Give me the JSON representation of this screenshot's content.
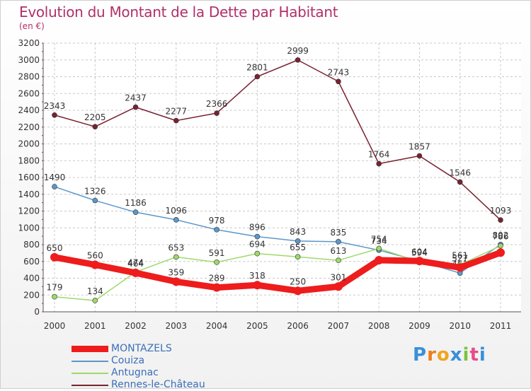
{
  "chart_data": {
    "type": "line",
    "title": "Evolution du Montant de la Dette par Habitant",
    "subtitle": "(en €)",
    "xlabel": "",
    "ylabel": "",
    "ylim": [
      0,
      3200
    ],
    "yticks": [
      "0",
      "200",
      "400",
      "600",
      "800",
      "1000",
      "1200",
      "1400",
      "1600",
      "1800",
      "2000",
      "2200",
      "2400",
      "2600",
      "2800",
      "3000",
      "3200"
    ],
    "categories": [
      "2000",
      "2001",
      "2002",
      "2003",
      "2004",
      "2005",
      "2006",
      "2007",
      "2008",
      "2009",
      "2010",
      "2011"
    ],
    "grid": true,
    "legend_position": "bottom-left",
    "series": [
      {
        "name": "Rennes-le-Château",
        "color": "#7a2230",
        "values": [
          2343,
          2205,
          2437,
          2277,
          2366,
          2801,
          2999,
          2743,
          1764,
          1857,
          1546,
          1093
        ],
        "labels": [
          "2343",
          "2205",
          "2437",
          "2277",
          "2366",
          "2801",
          "2999",
          "2743",
          "1764",
          "1857",
          "1546",
          "1093"
        ]
      },
      {
        "name": "Couiza",
        "color": "#5c97c9",
        "values": [
          1490,
          1326,
          1186,
          1096,
          978,
          896,
          843,
          835,
          734,
          604,
          461,
          802
        ],
        "labels": [
          "1490",
          "1326",
          "1186",
          "1096",
          "978",
          "896",
          "843",
          "835",
          "734",
          "604",
          "461",
          "802"
        ]
      },
      {
        "name": "Antugnac",
        "color": "#9ed96b",
        "values": [
          179,
          134,
          474,
          653,
          591,
          694,
          655,
          613,
          754,
          594,
          561,
          786
        ],
        "labels": [
          "179",
          "134",
          "474",
          "653",
          "591",
          "694",
          "655",
          "613",
          "754",
          "594",
          "561",
          "786"
        ]
      },
      {
        "name": "MONTAZELS",
        "color": "#ee1c1c",
        "values": [
          650,
          560,
          464,
          359,
          289,
          318,
          250,
          301,
          615,
          605,
          527,
          705
        ],
        "labels": [
          "650",
          "560",
          "464",
          "359",
          "289",
          "318",
          "250",
          "301",
          "",
          "",
          "527",
          ""
        ]
      }
    ]
  },
  "legend": {
    "items": [
      "MONTAZELS",
      "Couiza",
      "Antugnac",
      "Rennes-le-Château"
    ]
  },
  "brand": {
    "letters": [
      "P",
      "r",
      "o",
      "x",
      "i",
      "t",
      "i"
    ],
    "colors": [
      "#3a8fd9",
      "#f07c1c",
      "#f0a51c",
      "#3a8fd9",
      "#7cc242",
      "#e84c8b",
      "#3a8fd9"
    ]
  }
}
